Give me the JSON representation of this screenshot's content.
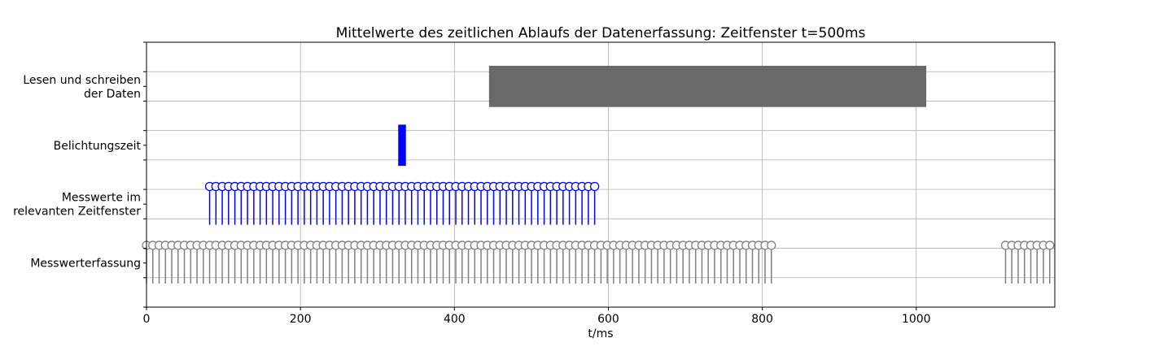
{
  "chart_data": {
    "type": "timeline",
    "title": "Mittelwerte des zeitlichen Ablaufs der Datenerfassung: Zeitfenster t=500ms",
    "xlabel": "t/ms",
    "ylabel": "",
    "xlim": [
      0,
      1180
    ],
    "ylim": [
      -1.5,
      7.5
    ],
    "grid": true,
    "xticks": [
      0,
      200,
      400,
      600,
      800,
      1000
    ],
    "yticks": [
      -1.5,
      -0.5,
      0.5,
      1.5,
      2.5,
      3.5,
      4.5,
      5.5,
      6.5,
      7.5
    ],
    "categories": [
      {
        "label": [
          "Messwerterfassung"
        ],
        "y": 0
      },
      {
        "label": [
          "Messwerte im",
          "relevanten Zeitfenster"
        ],
        "y": 2
      },
      {
        "label": [
          "Belichtungszeit"
        ],
        "y": 4
      },
      {
        "label": [
          "Lesen und schreiben",
          "der Daten"
        ],
        "y": 6
      }
    ],
    "bars": [
      {
        "category": "Lesen und schreiben der Daten",
        "start": 445,
        "end": 1013,
        "y_low": 5.3,
        "y_high": 6.7,
        "color": "#696969"
      },
      {
        "category": "Belichtungszeit",
        "start": 327,
        "end": 337,
        "y_low": 3.3,
        "y_high": 4.7,
        "color": "#0000ff"
      }
    ],
    "stems": [
      {
        "category": "Messwerterfassung",
        "color": "#808080",
        "baseline": -0.7,
        "top": 0.6,
        "x_start": 0,
        "x_step": 8.2,
        "x_end": 815,
        "x_start_2": 1116,
        "x_end_2": 1178
      },
      {
        "category": "Messwerte im relevanten Zeitfenster",
        "color": "#0000ff",
        "baseline": 1.3,
        "top": 2.6,
        "x_start": 82,
        "x_step": 8.2,
        "x_end": 583
      }
    ]
  }
}
